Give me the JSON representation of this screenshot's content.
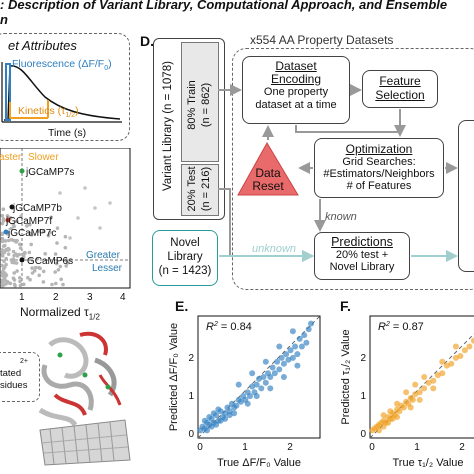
{
  "header": {
    "title_line1": ": Description of Variant Library, Computational Approach, and Ensemble",
    "title_line2": "n"
  },
  "panel_b": {
    "heading": "et Attributes",
    "fluorescence": "Fluorescence (ΔF/F",
    "fluorescence_sub": "0",
    "fluorescence_end": ")",
    "kinetics": "Kinetics (τ",
    "kinetics_sub": "1/2",
    "kinetics_end": ")",
    "xlabel": "Time (s)"
  },
  "panel_c": {
    "faster": "aster",
    "slower": "Slower",
    "greater": "Greater",
    "lesser": "Lesser",
    "xlabel": "Normalized τ",
    "xlabel_sub": "1/2",
    "xticks": [
      "1",
      "2",
      "3",
      "4"
    ],
    "labels": [
      "jGCaMP7s",
      "jGCaMP7b",
      "jGCaMP7f",
      "jGCaMP7c",
      "GCaMP6s"
    ]
  },
  "panel_structure": {
    "legend_line1": "2+",
    "legend_line2": "tated",
    "legend_line3": "sidues"
  },
  "panel_d": {
    "letter": "D.",
    "datasets_title": "x554 AA Property Datasets",
    "variant_library": "Variant Library (n = 1078)",
    "train": "80% Train",
    "train_n": "(n = 862)",
    "test": "20% Test",
    "test_n": "(n = 216)",
    "novel_library": "Novel Library",
    "novel_n": "(n = 1423)",
    "dataset_encoding_1": "Dataset",
    "dataset_encoding_2": "Encoding",
    "encoding_desc_1": "One property",
    "encoding_desc_2": "dataset at a time",
    "feature_selection_1": "Feature",
    "feature_selection_2": "Selection",
    "optimization": "Optimization",
    "opt_1": "Grid Searches:",
    "opt_2": "#Estimators/Neighbors",
    "opt_3": "# of Features",
    "data_reset_1": "Data",
    "data_reset_2": "Reset",
    "known": "known",
    "unknown": "unknown",
    "predictions": "Predictions",
    "pred_1": "20% test +",
    "pred_2": "Novel Library"
  },
  "panel_e": {
    "letter": "E.",
    "r2": "R",
    "r2_sup": "2",
    "r2_val": " = 0.84",
    "ylabel": "Predicted ΔF/F₀ Value",
    "xlabel": "True ΔF/F₀ Value",
    "xticks": [
      "0",
      "1",
      "2"
    ],
    "yticks": [
      "0",
      "1",
      "2"
    ]
  },
  "panel_f": {
    "letter": "F.",
    "r2": "R",
    "r2_sup": "2",
    "r2_val": " = 0.87",
    "ylabel": "Predicted τ₁/₂ Value",
    "xlabel": "True τ₁/₂ Value",
    "xticks": [
      "0",
      "1",
      "2"
    ],
    "yticks": [
      "0",
      "1",
      "2"
    ]
  },
  "colors": {
    "blue": "#2f7fc1",
    "orange": "#f0a020",
    "teal": "#2a9a9a",
    "red_tri": "#e86a6a",
    "green": "#2fa04a"
  },
  "chart_data": [
    {
      "type": "scatter",
      "title": "",
      "xlabel": "True ΔF/F₀ Value",
      "ylabel": "Predicted ΔF/F₀ Value",
      "xlim": [
        0,
        2.7
      ],
      "ylim": [
        -0.1,
        3.1
      ],
      "annotation": "R² = 0.84",
      "grid": false,
      "points": [
        [
          0.05,
          0.1
        ],
        [
          0.1,
          0.2
        ],
        [
          0.15,
          0.15
        ],
        [
          0.2,
          0.3
        ],
        [
          0.25,
          0.25
        ],
        [
          0.3,
          0.4
        ],
        [
          0.35,
          0.3
        ],
        [
          0.4,
          0.5
        ],
        [
          0.45,
          0.35
        ],
        [
          0.5,
          0.6
        ],
        [
          0.55,
          0.45
        ],
        [
          0.6,
          0.55
        ],
        [
          0.65,
          0.7
        ],
        [
          0.7,
          0.6
        ],
        [
          0.75,
          0.8
        ],
        [
          0.8,
          0.7
        ],
        [
          0.85,
          0.75
        ],
        [
          0.9,
          0.9
        ],
        [
          0.95,
          0.85
        ],
        [
          1.0,
          1.0
        ],
        [
          1.05,
          0.9
        ],
        [
          1.1,
          1.1
        ],
        [
          1.15,
          1.0
        ],
        [
          1.2,
          1.25
        ],
        [
          1.25,
          1.1
        ],
        [
          1.3,
          1.3
        ],
        [
          1.35,
          1.45
        ],
        [
          1.4,
          1.2
        ],
        [
          1.45,
          1.5
        ],
        [
          1.5,
          1.35
        ],
        [
          1.55,
          1.6
        ],
        [
          1.6,
          1.5
        ],
        [
          1.65,
          1.75
        ],
        [
          1.7,
          1.6
        ],
        [
          1.75,
          1.9
        ],
        [
          1.8,
          1.7
        ],
        [
          1.85,
          2.0
        ],
        [
          1.9,
          1.85
        ],
        [
          1.95,
          2.1
        ],
        [
          2.0,
          1.95
        ],
        [
          2.05,
          2.2
        ],
        [
          2.1,
          2.0
        ],
        [
          2.15,
          2.3
        ],
        [
          2.2,
          2.1
        ],
        [
          2.25,
          2.5
        ],
        [
          2.3,
          2.3
        ],
        [
          2.35,
          2.6
        ],
        [
          2.4,
          2.4
        ],
        [
          2.45,
          2.75
        ],
        [
          0.2,
          0.1
        ],
        [
          0.3,
          0.2
        ],
        [
          0.4,
          0.25
        ],
        [
          0.5,
          0.35
        ],
        [
          0.6,
          0.4
        ],
        [
          0.7,
          0.5
        ],
        [
          0.8,
          0.55
        ],
        [
          0.15,
          0.35
        ],
        [
          0.25,
          0.45
        ],
        [
          0.35,
          0.55
        ],
        [
          0.45,
          0.65
        ],
        [
          1.2,
          1.6
        ],
        [
          1.5,
          1.9
        ],
        [
          1.8,
          2.3
        ],
        [
          2.1,
          2.7
        ],
        [
          2.5,
          2.9
        ],
        [
          0.9,
          1.3
        ],
        [
          1.1,
          0.8
        ],
        [
          1.3,
          1.0
        ],
        [
          1.6,
          1.2
        ],
        [
          1.9,
          1.5
        ],
        [
          2.2,
          1.8
        ]
      ]
    },
    {
      "type": "scatter",
      "title": "",
      "xlabel": "True τ₁/₂ Value",
      "ylabel": "Predicted τ₁/₂ Value",
      "xlim": [
        0,
        2.7
      ],
      "ylim": [
        -0.1,
        3.1
      ],
      "annotation": "R² = 0.87",
      "grid": false,
      "points": [
        [
          0.05,
          0.1
        ],
        [
          0.1,
          0.15
        ],
        [
          0.15,
          0.2
        ],
        [
          0.2,
          0.25
        ],
        [
          0.25,
          0.3
        ],
        [
          0.3,
          0.35
        ],
        [
          0.35,
          0.3
        ],
        [
          0.4,
          0.45
        ],
        [
          0.45,
          0.4
        ],
        [
          0.5,
          0.55
        ],
        [
          0.55,
          0.5
        ],
        [
          0.6,
          0.65
        ],
        [
          0.65,
          0.6
        ],
        [
          0.7,
          0.75
        ],
        [
          0.75,
          0.7
        ],
        [
          0.8,
          0.85
        ],
        [
          0.85,
          0.8
        ],
        [
          0.9,
          0.95
        ],
        [
          0.95,
          0.9
        ],
        [
          1.0,
          1.05
        ],
        [
          1.1,
          1.1
        ],
        [
          1.2,
          1.2
        ],
        [
          1.3,
          1.35
        ],
        [
          1.4,
          1.4
        ],
        [
          1.5,
          1.55
        ],
        [
          1.6,
          1.6
        ],
        [
          1.7,
          1.8
        ],
        [
          1.8,
          1.85
        ],
        [
          1.9,
          2.0
        ],
        [
          2.0,
          2.05
        ],
        [
          2.1,
          2.2
        ],
        [
          2.2,
          2.3
        ],
        [
          2.3,
          2.45
        ],
        [
          2.4,
          2.6
        ],
        [
          0.2,
          0.1
        ],
        [
          0.3,
          0.2
        ],
        [
          0.4,
          0.3
        ],
        [
          0.5,
          0.4
        ],
        [
          0.6,
          0.45
        ],
        [
          0.3,
          0.5
        ],
        [
          0.45,
          0.6
        ],
        [
          0.6,
          0.8
        ],
        [
          0.8,
          1.1
        ],
        [
          1.0,
          1.3
        ],
        [
          1.2,
          1.5
        ],
        [
          0.9,
          0.7
        ],
        [
          1.1,
          0.9
        ],
        [
          1.4,
          1.2
        ],
        [
          1.6,
          1.9
        ],
        [
          1.9,
          2.3
        ]
      ]
    }
  ]
}
